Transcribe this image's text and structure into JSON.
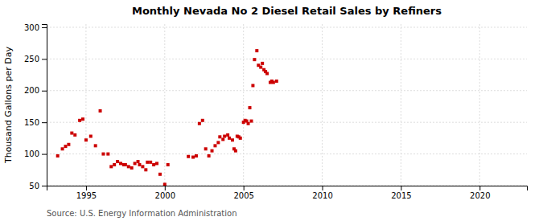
{
  "chart_data": {
    "type": "scatter",
    "title": "Monthly Nevada No 2 Diesel Retail Sales by Refiners",
    "ylabel": "Thousand Gallons per Day",
    "annotations": [
      "Source: U.S. Energy Information Administration"
    ],
    "color": "#cc0000",
    "marker": "square",
    "grid": true,
    "xlim": [
      1992.5,
      2023
    ],
    "ylim": [
      50,
      305
    ],
    "xticks": [
      1995,
      2000,
      2005,
      2010,
      2015,
      2020
    ],
    "yticks": [
      50,
      100,
      150,
      200,
      250,
      300
    ],
    "x": [
      1993.2,
      1993.5,
      1993.7,
      1993.9,
      1994.1,
      1994.3,
      1994.6,
      1994.8,
      1995.0,
      1995.3,
      1995.6,
      1995.9,
      1996.1,
      1996.4,
      1996.6,
      1996.8,
      1997.0,
      1997.2,
      1997.4,
      1997.5,
      1997.7,
      1997.9,
      1998.1,
      1998.3,
      1998.4,
      1998.6,
      1998.8,
      1998.9,
      1999.1,
      1999.3,
      1999.5,
      1999.7,
      2000.0,
      2000.2,
      2001.5,
      2001.8,
      2002.0,
      2002.2,
      2002.4,
      2002.6,
      2002.8,
      2003.0,
      2003.2,
      2003.4,
      2003.5,
      2003.7,
      2003.8,
      2004.0,
      2004.1,
      2004.3,
      2004.4,
      2004.5,
      2004.6,
      2004.7,
      2004.8,
      2005.0,
      2005.1,
      2005.2,
      2005.3,
      2005.4,
      2005.5,
      2005.6,
      2005.7,
      2005.85,
      2005.95,
      2006.1,
      2006.2,
      2006.3,
      2006.4,
      2006.5,
      2006.7,
      2006.8,
      2006.9,
      2007.1
    ],
    "values": [
      97,
      108,
      112,
      115,
      133,
      130,
      153,
      155,
      122,
      128,
      113,
      168,
      100,
      100,
      80,
      83,
      88,
      85,
      83,
      83,
      80,
      78,
      85,
      88,
      83,
      80,
      75,
      87,
      87,
      83,
      85,
      68,
      52,
      83,
      96,
      95,
      97,
      148,
      153,
      108,
      97,
      105,
      113,
      118,
      127,
      123,
      128,
      130,
      125,
      122,
      108,
      105,
      128,
      127,
      125,
      150,
      153,
      152,
      148,
      173,
      152,
      208,
      249,
      263,
      240,
      237,
      243,
      233,
      230,
      227,
      213,
      215,
      213,
      215
    ]
  }
}
